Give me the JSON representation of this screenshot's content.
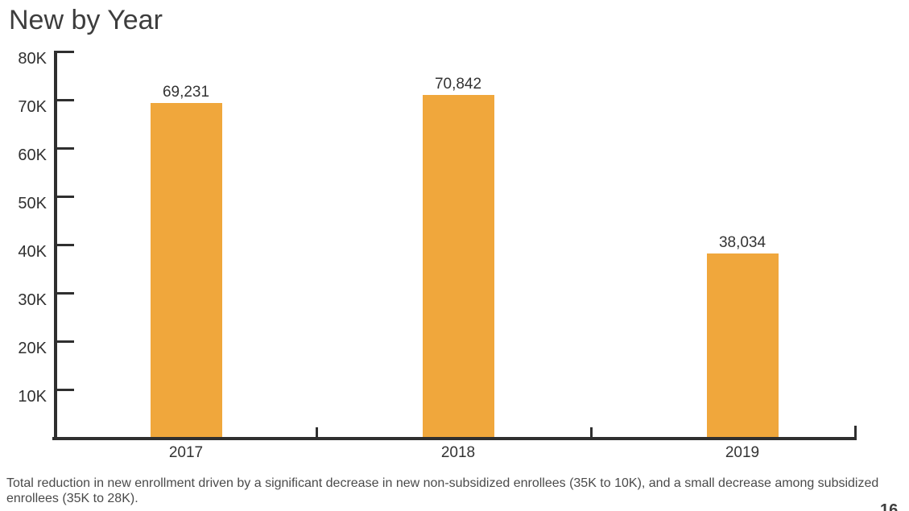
{
  "title": "New by Year",
  "chart_data": {
    "type": "bar",
    "categories": [
      "2017",
      "2018",
      "2019"
    ],
    "values": [
      69231,
      70842,
      38034
    ],
    "value_labels": [
      "69,231",
      "70,842",
      "38,034"
    ],
    "title": "New by Year",
    "xlabel": "",
    "ylabel": "",
    "ytick_labels": [
      "10K",
      "20K",
      "30K",
      "40K",
      "50K",
      "60K",
      "70K",
      "80K"
    ],
    "ytick_values": [
      10000,
      20000,
      30000,
      40000,
      50000,
      60000,
      70000,
      80000
    ],
    "ylim": [
      0,
      80000
    ],
    "grid": false,
    "legend": false,
    "bar_color": "#F0A73C"
  },
  "caption": "Total reduction in new enrollment driven by a significant decrease in new non-subsidized enrollees (35K to 10K), and a small decrease among subsidized enrollees (35K to 28K).",
  "page_number": "16"
}
